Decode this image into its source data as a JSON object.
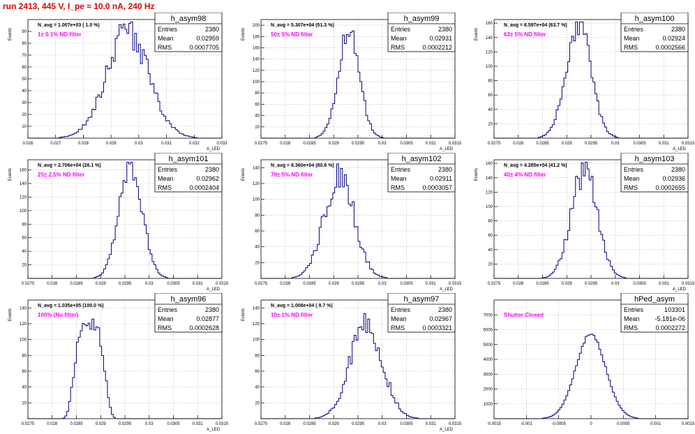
{
  "canvas_title": "run 2413,   445 V, I_pe ≈ 10.0 nA, 240 Hz",
  "colors": {
    "title": "#e00000",
    "hist": "#000080",
    "note": "#ff00ff",
    "grid": "#b0b0b0"
  },
  "chart_data": [
    {
      "type": "histogram",
      "name": "h_asym98",
      "stats": {
        "entries_label": "Entries",
        "entries": "2380",
        "mean_label": "Mean",
        "mean": "0.02959",
        "rms_label": "RMS",
        "rms": "0.0007705"
      },
      "navg": "N_avg = 1.007e+03 ( 1.0 %)",
      "note": "1± 0.1% ND filter",
      "ylabel": "Events",
      "xlabel": "A_LED",
      "xlim": [
        0.026,
        0.033
      ],
      "ylim": [
        0,
        100
      ],
      "mean": 0.0296,
      "sigma": 0.00077,
      "peak": 89,
      "jitter": 0.15,
      "xticks": [
        0.026,
        0.027,
        0.028,
        0.029,
        0.03,
        0.031,
        0.032,
        0.033
      ],
      "xtick_labels": [
        "0.026",
        "0.027",
        "0.028",
        "0.029",
        "0.03",
        "0.031",
        "0.032",
        "0.033"
      ],
      "yticks": [
        0,
        10,
        20,
        30,
        40,
        50,
        60,
        70,
        80,
        90
      ],
      "ytick_labels": [
        "",
        "10",
        "20",
        "30",
        "40",
        "50",
        "60",
        "70",
        "80",
        "90"
      ]
    },
    {
      "type": "histogram",
      "name": "h_asym99",
      "stats": {
        "entries_label": "Entries",
        "entries": "2380",
        "mean_label": "Mean",
        "mean": "0.02931",
        "rms_label": "RMS",
        "rms": "0.0002212"
      },
      "navg": "N_avg = 5.307e+04 (51.3 %)",
      "note": "50± 5% ND filter",
      "ylabel": "Events",
      "xlabel": "A_LED",
      "xlim": [
        0.0275,
        0.0315
      ],
      "ylim": [
        0,
        210
      ],
      "mean": 0.02931,
      "sigma": 0.00022,
      "peak": 185,
      "jitter": 0.12,
      "xticks": [
        0.0275,
        0.028,
        0.0285,
        0.029,
        0.0295,
        0.03,
        0.0305,
        0.031,
        0.0315
      ],
      "xtick_labels": [
        "0.0275",
        "0.028",
        "0.0285",
        "0.029",
        "0.0295",
        "0.03",
        "0.0305",
        "0.031",
        "0.0315"
      ],
      "yticks": [
        0,
        20,
        40,
        60,
        80,
        100,
        120,
        140,
        160,
        180,
        200
      ],
      "ytick_labels": [
        "",
        "20",
        "40",
        "60",
        "80",
        "100",
        "120",
        "140",
        "160",
        "180",
        "200"
      ]
    },
    {
      "type": "histogram",
      "name": "h_asym100",
      "stats": {
        "entries_label": "Entries",
        "entries": "2380",
        "mean_label": "Mean",
        "mean": "0.02924",
        "rms_label": "RMS",
        "rms": "0.0002566"
      },
      "navg": "N_avg = 6.597e+04 (63.7 %)",
      "note": "63± 5% ND filter",
      "ylabel": "Events",
      "xlabel": "A_LED",
      "xlim": [
        0.0275,
        0.0315
      ],
      "ylim": [
        0,
        165
      ],
      "mean": 0.02924,
      "sigma": 0.000257,
      "peak": 158,
      "jitter": 0.12,
      "xticks": [
        0.0275,
        0.028,
        0.0285,
        0.029,
        0.0295,
        0.03,
        0.0305,
        0.031,
        0.0315
      ],
      "xtick_labels": [
        "0.0275",
        "0.028",
        "0.0285",
        "0.029",
        "0.0295",
        "0.03",
        "0.0305",
        "0.031",
        "0.0315"
      ],
      "yticks": [
        0,
        20,
        40,
        60,
        80,
        100,
        120,
        140,
        160
      ],
      "ytick_labels": [
        "",
        "20",
        "40",
        "60",
        "80",
        "100",
        "120",
        "140",
        "160"
      ]
    },
    {
      "type": "histogram",
      "name": "h_asym101",
      "stats": {
        "entries_label": "Entries",
        "entries": "2380",
        "mean_label": "Mean",
        "mean": "0.02962",
        "rms_label": "RMS",
        "rms": "0.0002404"
      },
      "navg": "N_avg = 2.706e+04 (26.1 %)",
      "note": "25± 2.5% ND filter",
      "ylabel": "Events",
      "xlabel": "A_LED",
      "xlim": [
        0.0275,
        0.0315
      ],
      "ylim": [
        0,
        175
      ],
      "mean": 0.02962,
      "sigma": 0.00024,
      "peak": 165,
      "jitter": 0.12,
      "xticks": [
        0.0275,
        0.028,
        0.0285,
        0.029,
        0.0295,
        0.03,
        0.0305,
        0.031,
        0.0315
      ],
      "xtick_labels": [
        "0.0275",
        "0.028",
        "0.0285",
        "0.029",
        "0.0295",
        "0.03",
        "0.0305",
        "0.031",
        "0.0315"
      ],
      "yticks": [
        0,
        20,
        40,
        60,
        80,
        100,
        120,
        140,
        160
      ],
      "ytick_labels": [
        "",
        "20",
        "40",
        "60",
        "80",
        "100",
        "120",
        "140",
        "160"
      ]
    },
    {
      "type": "histogram",
      "name": "h_asym102",
      "stats": {
        "entries_label": "Entries",
        "entries": "2380",
        "mean_label": "Mean",
        "mean": "0.02911",
        "rms_label": "RMS",
        "rms": "0.0003057"
      },
      "navg": "N_avg = 8.360e+04 (80.8 %)",
      "note": "79± 5% ND filter",
      "ylabel": "Events",
      "xlabel": "A_LED",
      "xlim": [
        0.0275,
        0.0315
      ],
      "ylim": [
        0,
        150
      ],
      "mean": 0.02911,
      "sigma": 0.000306,
      "peak": 132,
      "jitter": 0.16,
      "xticks": [
        0.0275,
        0.028,
        0.0285,
        0.029,
        0.0295,
        0.03,
        0.0305,
        0.031,
        0.0315
      ],
      "xtick_labels": [
        "0.0275",
        "0.028",
        "0.0285",
        "0.029",
        "0.0295",
        "0.03",
        "0.0305",
        "0.031",
        "0.0315"
      ],
      "yticks": [
        0,
        20,
        40,
        60,
        80,
        100,
        120,
        140
      ],
      "ytick_labels": [
        "",
        "20",
        "40",
        "60",
        "80",
        "100",
        "120",
        "140"
      ]
    },
    {
      "type": "histogram",
      "name": "h_asym103",
      "stats": {
        "entries_label": "Entries",
        "entries": "2380",
        "mean_label": "Mean",
        "mean": "0.02936",
        "rms_label": "RMS",
        "rms": "0.0002655"
      },
      "navg": "N_avg = 4.265e+04 (41.2 %)",
      "note": "40± 4% ND filter",
      "ylabel": "Events",
      "xlabel": "A_LED",
      "xlim": [
        0.0275,
        0.0315
      ],
      "ylim": [
        0,
        165
      ],
      "mean": 0.02936,
      "sigma": 0.000266,
      "peak": 150,
      "jitter": 0.14,
      "xticks": [
        0.0275,
        0.028,
        0.0285,
        0.029,
        0.0295,
        0.03,
        0.0305,
        0.031,
        0.0315
      ],
      "xtick_labels": [
        "0.0275",
        "0.028",
        "0.0285",
        "0.029",
        "0.0295",
        "0.03",
        "0.0305",
        "0.031",
        "0.0315"
      ],
      "yticks": [
        0,
        20,
        40,
        60,
        80,
        100,
        120,
        140,
        160
      ],
      "ytick_labels": [
        "",
        "20",
        "40",
        "60",
        "80",
        "100",
        "120",
        "140",
        "160"
      ]
    },
    {
      "type": "histogram",
      "name": "h_asym96",
      "stats": {
        "entries_label": "Entries",
        "entries": "2380",
        "mean_label": "Mean",
        "mean": "0.02877",
        "rms_label": "RMS",
        "rms": "0.0002628"
      },
      "navg": "N_avg = 1.035e+05 (100.0 %)",
      "note": "100% (No filter)",
      "ylabel": "Events",
      "xlabel": "A_LED",
      "xlim": [
        0.0275,
        0.0315
      ],
      "ylim": [
        0,
        150
      ],
      "mean": 0.02877,
      "sigma": 0.000263,
      "peak": 118,
      "jitter": 0.1,
      "flat": true,
      "xticks": [
        0.0275,
        0.028,
        0.0285,
        0.029,
        0.0295,
        0.03,
        0.0305,
        0.031,
        0.0315
      ],
      "xtick_labels": [
        "0.0275",
        "0.028",
        "0.0285",
        "0.029",
        "0.0295",
        "0.03",
        "0.0305",
        "0.031",
        "0.0315"
      ],
      "yticks": [
        0,
        20,
        40,
        60,
        80,
        100,
        120,
        140
      ],
      "ytick_labels": [
        "",
        "20",
        "40",
        "60",
        "80",
        "100",
        "120",
        "140"
      ]
    },
    {
      "type": "histogram",
      "name": "h_asym97",
      "stats": {
        "entries_label": "Entries",
        "entries": "2380",
        "mean_label": "Mean",
        "mean": "0.02967",
        "rms_label": "RMS",
        "rms": "0.0003321"
      },
      "navg": "N_avg = 1.008e+04 ( 9.7 %)",
      "note": "10± 1% ND filter",
      "ylabel": "Events",
      "xlabel": "A_LED",
      "xlim": [
        0.0275,
        0.0315
      ],
      "ylim": [
        0,
        150
      ],
      "mean": 0.02967,
      "sigma": 0.00033,
      "peak": 120,
      "jitter": 0.15,
      "xticks": [
        0.0275,
        0.028,
        0.0285,
        0.029,
        0.0295,
        0.03,
        0.0305,
        0.031,
        0.0315
      ],
      "xtick_labels": [
        "0.0275",
        "0.028",
        "0.0285",
        "0.029",
        "0.0295",
        "0.03",
        "0.0305",
        "0.031",
        "0.0315"
      ],
      "yticks": [
        0,
        20,
        40,
        60,
        80,
        100,
        120,
        140
      ],
      "ytick_labels": [
        "",
        "20",
        "40",
        "60",
        "80",
        "100",
        "120",
        "140"
      ]
    },
    {
      "type": "histogram",
      "name": "hPed_asym",
      "stats": {
        "entries_label": "Entries",
        "entries": "103301",
        "mean_label": "Mean",
        "mean": "-5.181e-06",
        "rms_label": "RMS",
        "rms": "0.0002272"
      },
      "navg": "",
      "note": "Shutter Closed",
      "ylabel": "",
      "xlabel": "",
      "xlim": [
        -0.0015,
        0.0015
      ],
      "ylim": [
        0,
        8000
      ],
      "mean": -5e-06,
      "sigma": 0.00023,
      "peak": 5700,
      "jitter": 0.02,
      "xticks": [
        -0.0015,
        -0.001,
        -0.0005,
        0,
        0.0005,
        0.001,
        0.0015
      ],
      "xtick_labels": [
        "-0.0015",
        "-0.001",
        "-0.0005",
        "0",
        "0.0005",
        "0.001",
        "0.0015"
      ],
      "yticks": [
        0,
        1000,
        2000,
        3000,
        4000,
        5000,
        6000,
        7000
      ],
      "ytick_labels": [
        "",
        "1000",
        "2000",
        "3000",
        "4000",
        "5000",
        "6000",
        "7000"
      ]
    }
  ]
}
